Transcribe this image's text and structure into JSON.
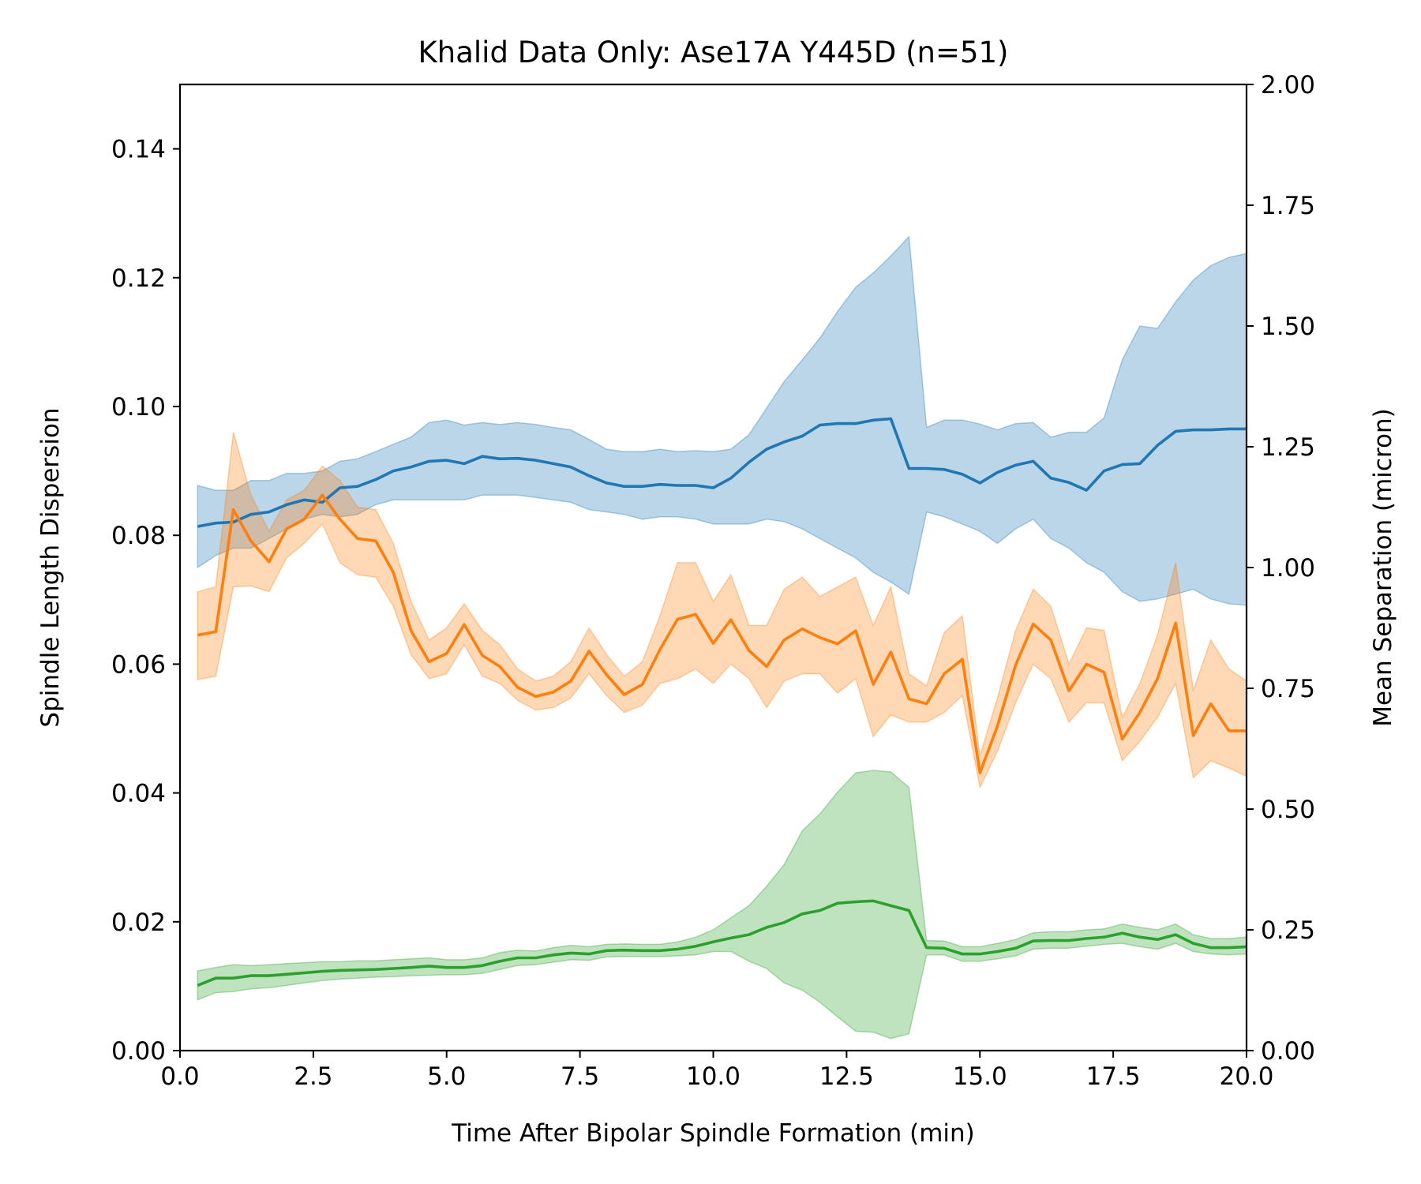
{
  "chart_data": {
    "type": "line",
    "title": "Khalid Data Only: Ase17A Y445D (n=51)",
    "xlabel": "Time After Bipolar Spindle Formation (min)",
    "ylabel": "Spindle Length Dispersion",
    "y2label": "Mean Separation (micron)",
    "xlim": [
      0,
      20
    ],
    "ylim": [
      0,
      0.15
    ],
    "y2lim": [
      0,
      2.0
    ],
    "xticks": [
      "0.0",
      "2.5",
      "5.0",
      "7.5",
      "10.0",
      "12.5",
      "15.0",
      "17.5",
      "20.0"
    ],
    "yticks": [
      "0.00",
      "0.02",
      "0.04",
      "0.06",
      "0.08",
      "0.10",
      "0.12",
      "0.14"
    ],
    "y2ticks": [
      "0.00",
      "0.25",
      "0.50",
      "0.75",
      "1.00",
      "1.25",
      "1.50",
      "1.75",
      "2.00"
    ],
    "legend": "none",
    "grid": false,
    "x": [
      0.33,
      0.67,
      1.0,
      1.33,
      1.67,
      2.0,
      2.33,
      2.67,
      3.0,
      3.33,
      3.67,
      4.0,
      4.33,
      4.67,
      5.0,
      5.33,
      5.67,
      6.0,
      6.33,
      6.67,
      7.0,
      7.33,
      7.67,
      8.0,
      8.33,
      8.67,
      9.0,
      9.33,
      9.67,
      10.0,
      10.33,
      10.67,
      11.0,
      11.33,
      11.67,
      12.0,
      12.33,
      12.67,
      13.0,
      13.33,
      13.67,
      14.0,
      14.33,
      14.67,
      15.0,
      15.33,
      15.67,
      16.0,
      16.33,
      16.67,
      17.0,
      17.33,
      17.67,
      18.0,
      18.33,
      18.67,
      19.0,
      19.33,
      19.67,
      20.0
    ],
    "series": [
      {
        "axis": "right",
        "color": "#1f77b4",
        "mean": [
          1.085,
          1.092,
          1.094,
          1.11,
          1.115,
          1.13,
          1.14,
          1.135,
          1.165,
          1.168,
          1.182,
          1.2,
          1.208,
          1.22,
          1.222,
          1.215,
          1.23,
          1.225,
          1.226,
          1.222,
          1.215,
          1.208,
          1.19,
          1.175,
          1.168,
          1.168,
          1.172,
          1.17,
          1.17,
          1.165,
          1.185,
          1.218,
          1.245,
          1.26,
          1.272,
          1.295,
          1.298,
          1.298,
          1.305,
          1.308,
          1.205,
          1.205,
          1.203,
          1.193,
          1.175,
          1.197,
          1.212,
          1.22,
          1.185,
          1.176,
          1.16,
          1.2,
          1.213,
          1.215,
          1.253,
          1.282,
          1.285,
          1.285,
          1.287,
          1.287
        ],
        "lower": [
          1.0,
          1.025,
          1.04,
          1.04,
          1.06,
          1.08,
          1.1,
          1.11,
          1.105,
          1.11,
          1.13,
          1.14,
          1.14,
          1.14,
          1.14,
          1.14,
          1.15,
          1.15,
          1.15,
          1.145,
          1.14,
          1.135,
          1.12,
          1.115,
          1.11,
          1.1,
          1.105,
          1.105,
          1.1,
          1.09,
          1.09,
          1.09,
          1.1,
          1.095,
          1.08,
          1.06,
          1.04,
          1.02,
          0.99,
          0.97,
          0.945,
          1.115,
          1.105,
          1.09,
          1.075,
          1.05,
          1.08,
          1.1,
          1.06,
          1.04,
          1.01,
          0.99,
          0.95,
          0.93,
          0.935,
          0.945,
          0.955,
          0.935,
          0.925,
          0.922
        ],
        "upper": [
          1.17,
          1.16,
          1.16,
          1.18,
          1.18,
          1.195,
          1.195,
          1.2,
          1.22,
          1.225,
          1.24,
          1.255,
          1.27,
          1.3,
          1.305,
          1.295,
          1.3,
          1.296,
          1.3,
          1.296,
          1.29,
          1.285,
          1.265,
          1.245,
          1.24,
          1.24,
          1.245,
          1.24,
          1.242,
          1.24,
          1.245,
          1.275,
          1.33,
          1.385,
          1.43,
          1.475,
          1.53,
          1.58,
          1.61,
          1.645,
          1.685,
          1.29,
          1.305,
          1.305,
          1.297,
          1.285,
          1.298,
          1.3,
          1.27,
          1.28,
          1.28,
          1.31,
          1.43,
          1.5,
          1.495,
          1.55,
          1.595,
          1.625,
          1.642,
          1.65
        ]
      },
      {
        "axis": "right",
        "color": "#ff7f0e",
        "mean": [
          0.86,
          0.867,
          1.12,
          1.055,
          1.012,
          1.08,
          1.1,
          1.15,
          1.1,
          1.06,
          1.055,
          0.99,
          0.87,
          0.805,
          0.822,
          0.882,
          0.818,
          0.795,
          0.752,
          0.733,
          0.742,
          0.765,
          0.827,
          0.778,
          0.737,
          0.758,
          0.83,
          0.893,
          0.903,
          0.843,
          0.892,
          0.828,
          0.795,
          0.85,
          0.873,
          0.855,
          0.842,
          0.869,
          0.758,
          0.825,
          0.728,
          0.718,
          0.78,
          0.81,
          0.575,
          0.672,
          0.798,
          0.883,
          0.85,
          0.745,
          0.8,
          0.783,
          0.645,
          0.7,
          0.77,
          0.885,
          0.652,
          0.718,
          0.662,
          0.662
        ],
        "lower": [
          0.768,
          0.775,
          0.96,
          0.962,
          0.95,
          1.02,
          1.05,
          1.09,
          1.01,
          0.985,
          0.98,
          0.92,
          0.82,
          0.77,
          0.78,
          0.84,
          0.775,
          0.76,
          0.725,
          0.705,
          0.71,
          0.73,
          0.78,
          0.735,
          0.7,
          0.715,
          0.76,
          0.77,
          0.79,
          0.76,
          0.8,
          0.77,
          0.71,
          0.765,
          0.78,
          0.78,
          0.74,
          0.77,
          0.65,
          0.695,
          0.68,
          0.68,
          0.7,
          0.735,
          0.545,
          0.62,
          0.72,
          0.8,
          0.77,
          0.68,
          0.72,
          0.72,
          0.6,
          0.64,
          0.69,
          0.76,
          0.565,
          0.6,
          0.585,
          0.568
        ],
        "upper": [
          0.95,
          0.96,
          1.28,
          1.15,
          1.075,
          1.14,
          1.16,
          1.21,
          1.18,
          1.125,
          1.12,
          1.05,
          0.93,
          0.85,
          0.875,
          0.925,
          0.87,
          0.84,
          0.79,
          0.765,
          0.775,
          0.805,
          0.875,
          0.82,
          0.775,
          0.805,
          0.9,
          1.01,
          1.01,
          0.93,
          0.985,
          0.88,
          0.88,
          0.955,
          0.98,
          0.94,
          0.96,
          0.98,
          0.88,
          0.96,
          0.78,
          0.755,
          0.865,
          0.9,
          0.61,
          0.73,
          0.87,
          0.955,
          0.92,
          0.8,
          0.875,
          0.87,
          0.69,
          0.76,
          0.86,
          1.01,
          0.745,
          0.85,
          0.79,
          0.765
        ]
      },
      {
        "axis": "right",
        "color": "#2ca02c",
        "mean": [
          0.135,
          0.15,
          0.15,
          0.155,
          0.155,
          0.158,
          0.161,
          0.164,
          0.166,
          0.167,
          0.168,
          0.17,
          0.172,
          0.175,
          0.172,
          0.172,
          0.176,
          0.185,
          0.192,
          0.192,
          0.198,
          0.202,
          0.2,
          0.207,
          0.208,
          0.207,
          0.207,
          0.21,
          0.216,
          0.225,
          0.233,
          0.24,
          0.255,
          0.265,
          0.283,
          0.29,
          0.305,
          0.308,
          0.31,
          0.3,
          0.29,
          0.213,
          0.212,
          0.2,
          0.2,
          0.205,
          0.212,
          0.227,
          0.228,
          0.228,
          0.232,
          0.235,
          0.243,
          0.235,
          0.23,
          0.24,
          0.222,
          0.213,
          0.213,
          0.215
        ],
        "lower": [
          0.105,
          0.12,
          0.122,
          0.128,
          0.13,
          0.135,
          0.14,
          0.145,
          0.148,
          0.15,
          0.152,
          0.153,
          0.155,
          0.156,
          0.157,
          0.157,
          0.16,
          0.168,
          0.176,
          0.178,
          0.183,
          0.188,
          0.187,
          0.194,
          0.195,
          0.195,
          0.195,
          0.196,
          0.198,
          0.205,
          0.205,
          0.185,
          0.17,
          0.14,
          0.125,
          0.1,
          0.07,
          0.04,
          0.038,
          0.025,
          0.035,
          0.198,
          0.198,
          0.185,
          0.185,
          0.19,
          0.196,
          0.21,
          0.212,
          0.212,
          0.216,
          0.22,
          0.222,
          0.215,
          0.21,
          0.222,
          0.205,
          0.2,
          0.198,
          0.2
        ],
        "upper": [
          0.165,
          0.172,
          0.178,
          0.176,
          0.178,
          0.18,
          0.182,
          0.184,
          0.184,
          0.186,
          0.186,
          0.188,
          0.19,
          0.192,
          0.188,
          0.188,
          0.192,
          0.203,
          0.208,
          0.206,
          0.213,
          0.218,
          0.215,
          0.22,
          0.221,
          0.22,
          0.22,
          0.225,
          0.235,
          0.25,
          0.275,
          0.3,
          0.34,
          0.385,
          0.455,
          0.49,
          0.535,
          0.575,
          0.58,
          0.577,
          0.545,
          0.228,
          0.227,
          0.215,
          0.215,
          0.222,
          0.23,
          0.244,
          0.246,
          0.246,
          0.25,
          0.252,
          0.262,
          0.255,
          0.25,
          0.262,
          0.24,
          0.232,
          0.232,
          0.235
        ]
      }
    ]
  }
}
